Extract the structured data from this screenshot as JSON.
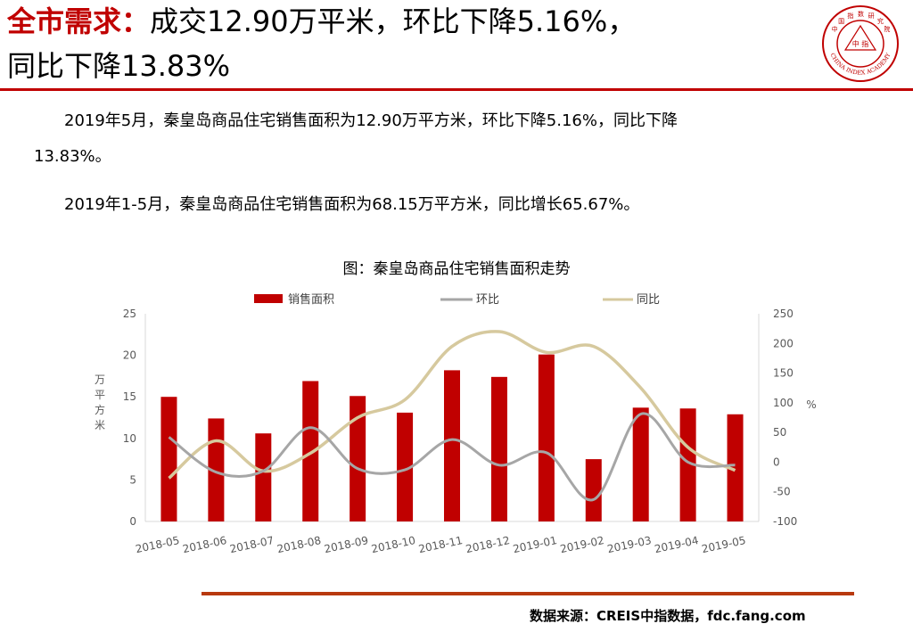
{
  "header": {
    "title_red": "全市需求：",
    "title_line1": "成交12.90万平米，环比下降5.16%，",
    "title_line2": "同比下降13.83%",
    "logo_chars": [
      "中",
      "国",
      "指",
      "数",
      "研",
      "究",
      "院"
    ],
    "logo_center": "中 指",
    "logo_en": "CHINA INDEX ACADEMY"
  },
  "body": {
    "para1_a": "2019年5月，秦皇岛商品住宅销售面积为12.90万平方米，环比下降5.16%，同比下降",
    "para1_b": "13.83%。",
    "para2": "2019年1-5月，秦皇岛商品住宅销售面积为68.15万平方米，同比增长65.67%。"
  },
  "chart_title": "图：秦皇岛商品住宅销售面积走势",
  "source": "数据来源：CREIS中指数据，fdc.fang.com",
  "colors": {
    "bar": "#c00000",
    "mom": "#a6a6a6",
    "yoy": "#d6c99e",
    "accent": "#c00000"
  },
  "chart_data": {
    "type": "bar",
    "title": "图：秦皇岛商品住宅销售面积走势",
    "categories": [
      "2018-05",
      "2018-06",
      "2018-07",
      "2018-08",
      "2018-09",
      "2018-10",
      "2018-11",
      "2018-12",
      "2019-01",
      "2019-02",
      "2019-03",
      "2019-04",
      "2019-05"
    ],
    "series": [
      {
        "name": "销售面积",
        "type": "bar",
        "axis": "left",
        "values": [
          15.0,
          12.4,
          10.6,
          16.9,
          15.1,
          13.1,
          18.2,
          17.4,
          20.1,
          7.5,
          13.7,
          13.6,
          12.9
        ]
      },
      {
        "name": "环比",
        "type": "line",
        "axis": "right",
        "values": [
          42,
          -17,
          -15,
          58,
          -11,
          -13,
          38,
          -5,
          16,
          -63,
          81,
          0,
          -5
        ]
      },
      {
        "name": "同比",
        "type": "line",
        "axis": "right",
        "values": [
          -27,
          36,
          -15,
          15,
          75,
          105,
          195,
          220,
          185,
          195,
          125,
          25,
          -14
        ]
      }
    ],
    "ylabel": "万平方米",
    "y2label": "%",
    "ylim": [
      0,
      25
    ],
    "yticks": [
      0,
      5,
      10,
      15,
      20,
      25
    ],
    "y2lim": [
      -100,
      250
    ],
    "y2ticks": [
      -100,
      -50,
      0,
      50,
      100,
      150,
      200,
      250
    ],
    "legend_position": "top",
    "grid": false
  }
}
